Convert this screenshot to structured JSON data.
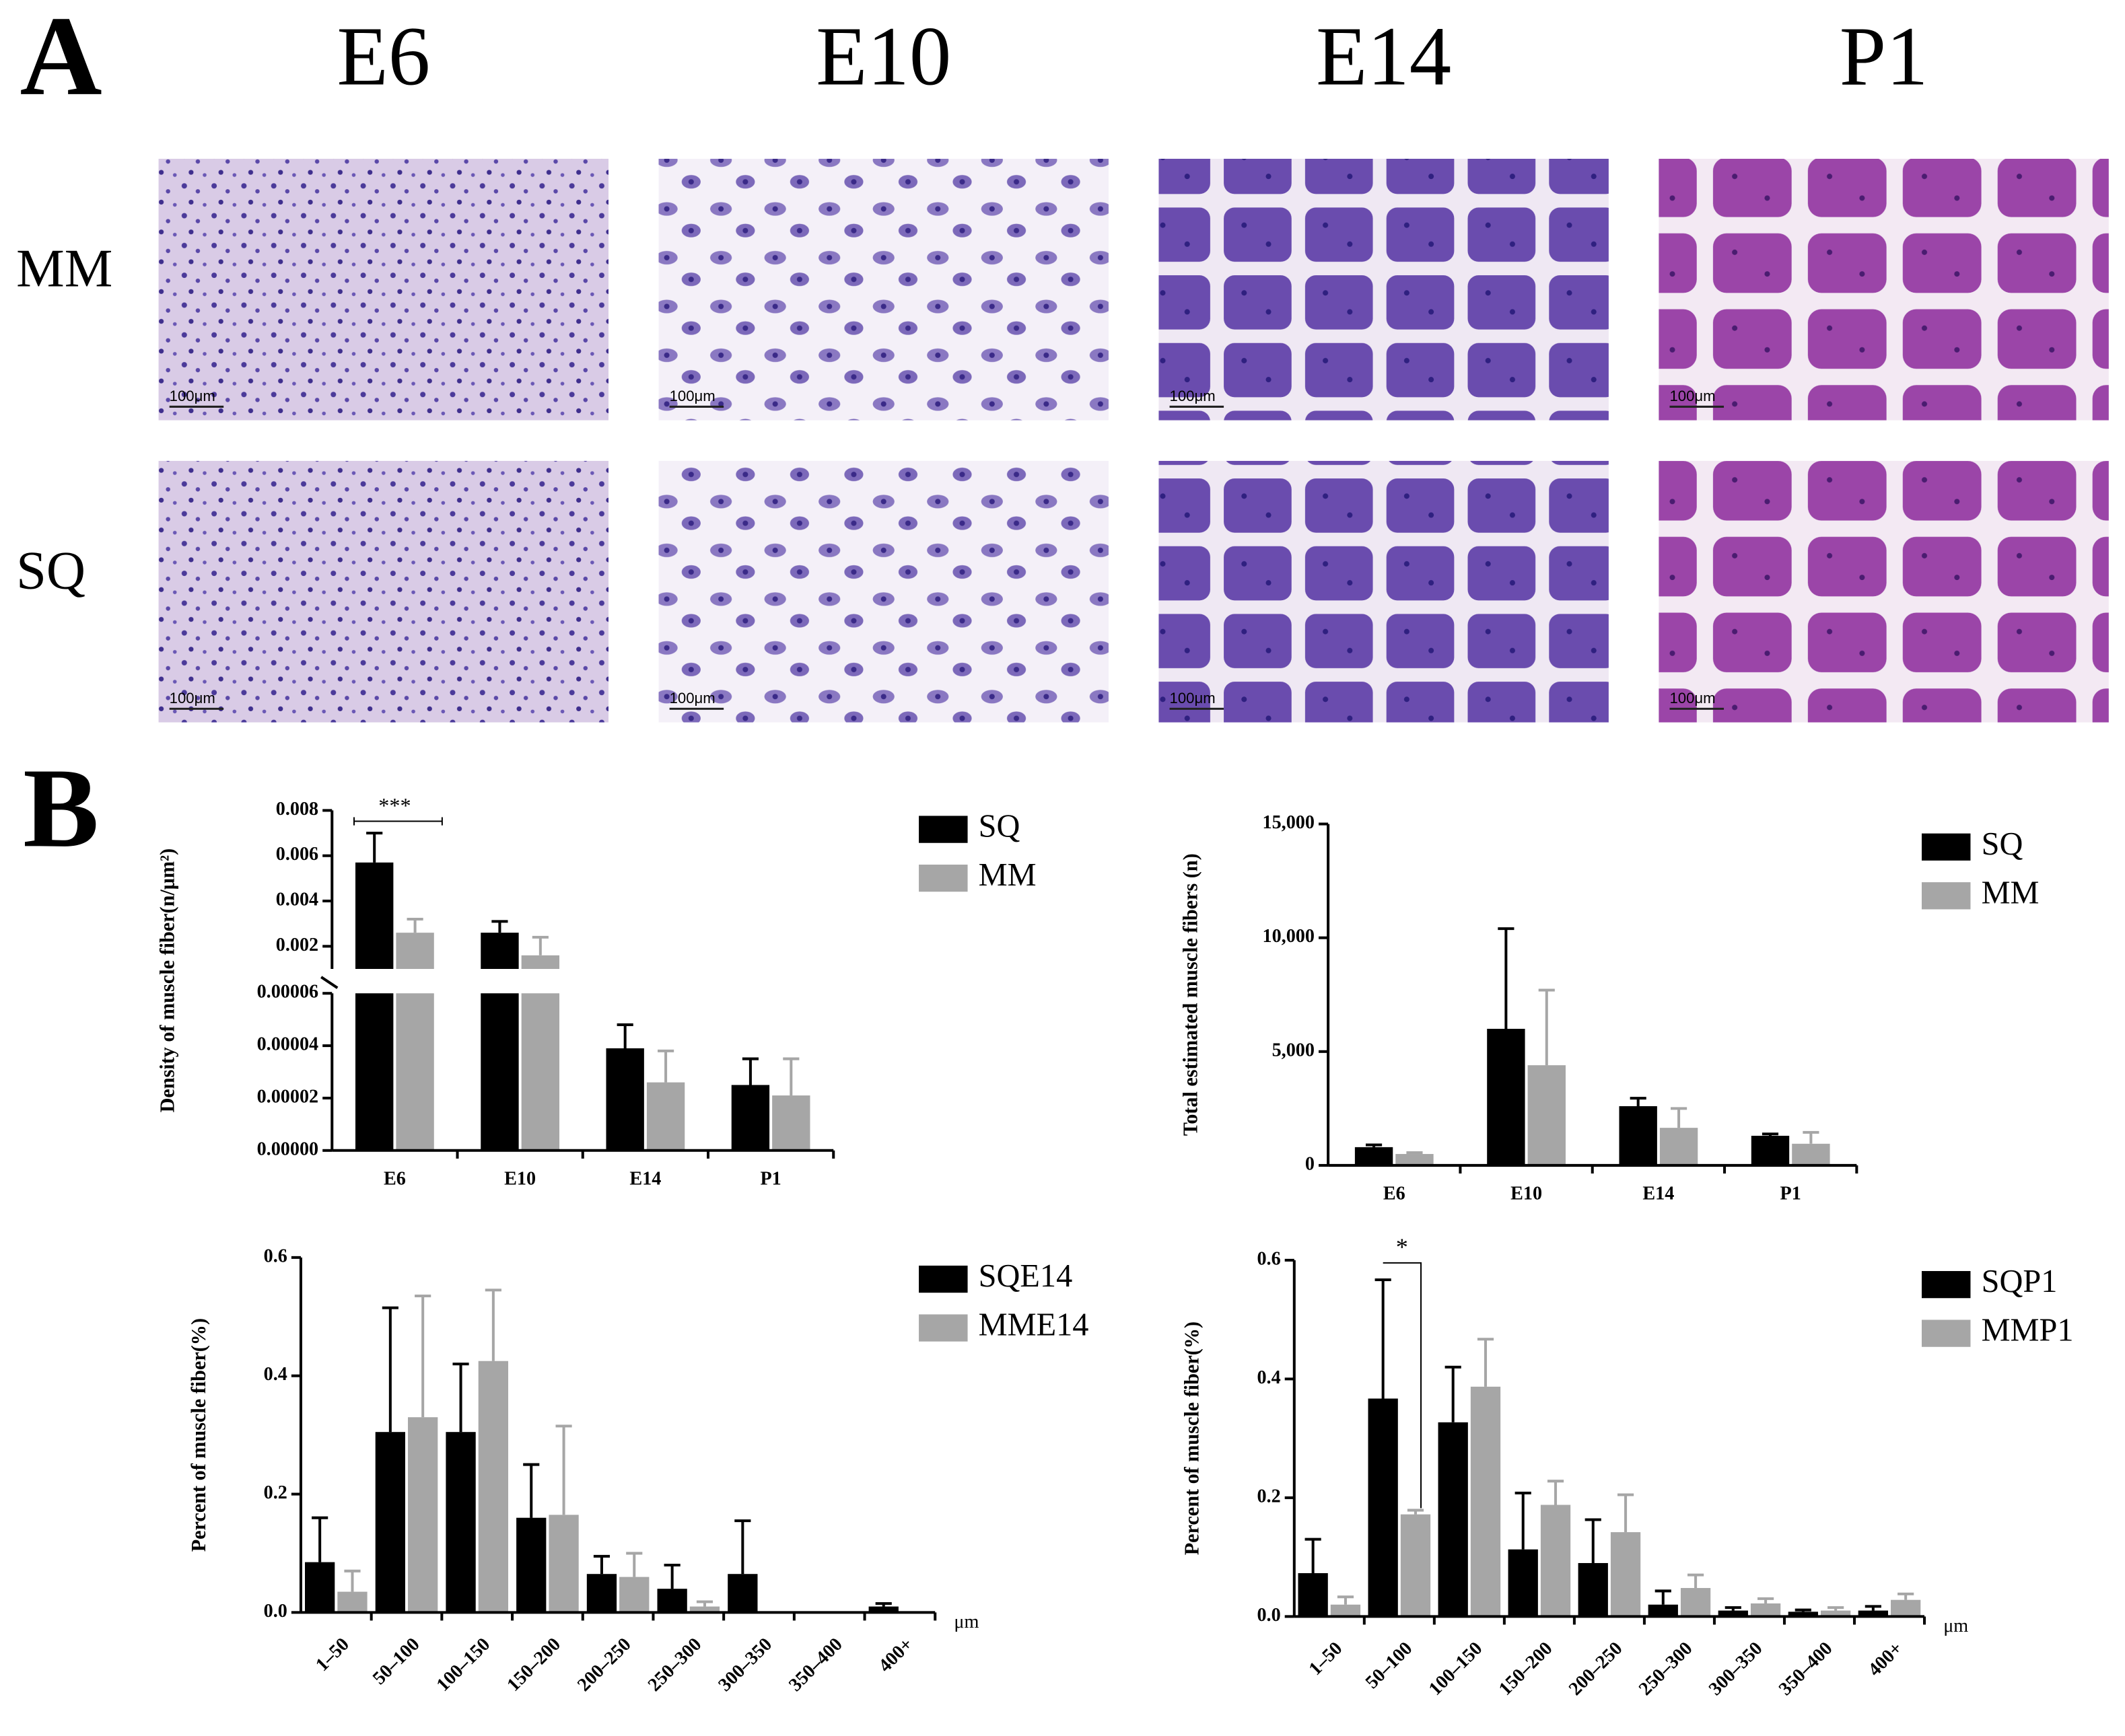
{
  "panel_a": {
    "label": "A",
    "columns": [
      "E6",
      "E10",
      "E14",
      "P1"
    ],
    "rows": [
      "MM",
      "SQ"
    ],
    "scale_bar": "100μm"
  },
  "panel_b": {
    "label": "B"
  },
  "chart_data": [
    {
      "type": "bar",
      "y_label": "Density of muscle fiber(n/μm²)",
      "categories": [
        "E6",
        "E10",
        "E14",
        "P1"
      ],
      "series": [
        {
          "name": "SQ",
          "color": "#000000",
          "values": [
            0.0057,
            0.0026,
            3.9e-05,
            2.5e-05
          ],
          "errors": [
            0.0013,
            0.0005,
            9e-06,
            1e-05
          ]
        },
        {
          "name": "MM",
          "color": "#a6a6a6",
          "values": [
            0.0026,
            0.0016,
            2.6e-05,
            2.1e-05
          ],
          "errors": [
            0.0006,
            0.0008,
            1.2e-05,
            1.4e-05
          ]
        }
      ],
      "ylim": [
        0,
        0.008
      ],
      "y_break": [
        6e-05,
        0.001
      ],
      "yticks": [
        {
          "value": 0,
          "label": "0.00000"
        },
        2e-05,
        4e-05,
        6e-05,
        0.002,
        0.004,
        0.006,
        0.008
      ],
      "significance": [
        {
          "label": "***",
          "category": 0
        }
      ],
      "legend": "right"
    },
    {
      "type": "bar",
      "y_label": "Total estimated muscle fibers (n)",
      "categories": [
        "E6",
        "E10",
        "E14",
        "P1"
      ],
      "series": [
        {
          "name": "SQ",
          "color": "#000000",
          "values": [
            800,
            6000,
            2600,
            1300
          ],
          "errors": [
            100,
            4400,
            350,
            80
          ]
        },
        {
          "name": "MM",
          "color": "#a6a6a6",
          "values": [
            500,
            4400,
            1650,
            950
          ],
          "errors": [
            60,
            3300,
            850,
            500
          ]
        }
      ],
      "ylim": [
        0,
        15000
      ],
      "yticks": [
        0,
        {
          "value": 5000,
          "label": "5,000"
        },
        {
          "value": 10000,
          "label": "10,000"
        },
        {
          "value": 15000,
          "label": "15,000"
        }
      ],
      "legend": "right"
    },
    {
      "type": "bar",
      "y_label": "Percent of muscle fiber(%)",
      "x_unit": "μm",
      "categories": [
        "1–50",
        "50–100",
        "100–150",
        "150–200",
        "200–250",
        "250–300",
        "300–350",
        "350–400",
        "400+"
      ],
      "series": [
        {
          "name": "SQE14",
          "color": "#000000",
          "values": [
            0.085,
            0.305,
            0.305,
            0.16,
            0.065,
            0.04,
            0.065,
            null,
            0.01
          ],
          "errors": [
            0.075,
            0.21,
            0.115,
            0.09,
            0.03,
            0.04,
            0.09,
            null,
            0.005
          ]
        },
        {
          "name": "MME14",
          "color": "#a6a6a6",
          "values": [
            0.035,
            0.33,
            0.425,
            0.165,
            0.06,
            0.01,
            null,
            null,
            null
          ],
          "errors": [
            0.035,
            0.205,
            0.12,
            0.15,
            0.04,
            0.008,
            null,
            null,
            null
          ]
        }
      ],
      "ylim": [
        0,
        0.6
      ],
      "yticks": [
        {
          "value": 0,
          "label": "0.0"
        },
        0.2,
        0.4,
        0.6
      ],
      "legend": "right"
    },
    {
      "type": "bar",
      "y_label": "Percent of muscle fiber(%)",
      "x_unit": "μm",
      "categories": [
        "1–50",
        "50–100",
        "100–150",
        "150–200",
        "200–250",
        "250–300",
        "300–350",
        "350–400",
        "400+"
      ],
      "series": [
        {
          "name": "SQP1",
          "color": "#000000",
          "values": [
            0.073,
            0.367,
            0.327,
            0.113,
            0.09,
            0.02,
            0.01,
            0.008,
            0.01
          ],
          "errors": [
            0.057,
            0.2,
            0.093,
            0.095,
            0.073,
            0.023,
            0.005,
            0.003,
            0.007
          ]
        },
        {
          "name": "MMP1",
          "color": "#a6a6a6",
          "values": [
            0.02,
            0.172,
            0.387,
            0.188,
            0.142,
            0.048,
            0.022,
            0.01,
            0.028
          ],
          "errors": [
            0.013,
            0.007,
            0.08,
            0.04,
            0.063,
            0.022,
            0.008,
            0.005,
            0.01
          ]
        }
      ],
      "ylim": [
        0,
        0.6
      ],
      "yticks": [
        {
          "value": 0,
          "label": "0.0"
        },
        0.2,
        0.4,
        0.6
      ],
      "significance": [
        {
          "label": "*",
          "category": 1
        }
      ],
      "legend": "right"
    }
  ]
}
